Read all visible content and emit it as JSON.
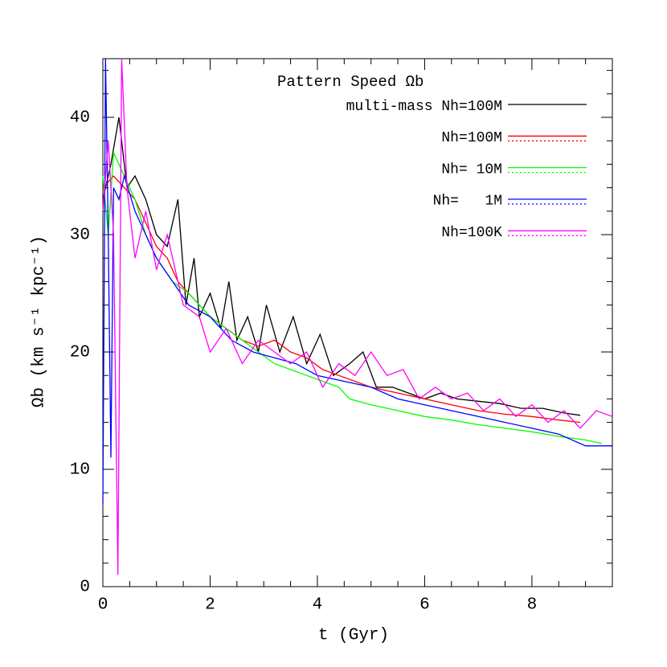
{
  "chart_data": {
    "type": "line",
    "xlabel": "t (Gyr)",
    "ylabel": "Ωb (km s⁻¹ kpc⁻¹)",
    "legend_title": "Pattern Speed Ωb",
    "legend": "upper right",
    "xlim": [
      0,
      9.5
    ],
    "ylim": [
      0,
      45
    ],
    "xticks": [
      0,
      2,
      4,
      6,
      8
    ],
    "yticks": [
      0,
      10,
      20,
      30,
      40
    ],
    "xminorticks": [
      0.5,
      1,
      1.5,
      2.5,
      3,
      3.5,
      4.5,
      5,
      5.5,
      6.5,
      7,
      7.5,
      8.5,
      9
    ],
    "yminorticks": [
      2,
      4,
      6,
      8,
      12,
      14,
      16,
      18,
      22,
      24,
      26,
      28,
      32,
      34,
      36,
      38,
      42,
      44
    ],
    "series": [
      {
        "name": "multi-mass Nh=100M",
        "color": "#000000",
        "paired": false,
        "x": [
          0,
          0.15,
          0.3,
          0.45,
          0.6,
          0.8,
          1.0,
          1.2,
          1.4,
          1.55,
          1.7,
          1.8,
          2.0,
          2.2,
          2.35,
          2.5,
          2.7,
          2.9,
          3.05,
          3.3,
          3.55,
          3.8,
          4.05,
          4.3,
          4.6,
          4.85,
          5.1,
          5.4,
          5.7,
          6.0,
          6.3,
          6.6,
          7.0,
          7.4,
          7.8,
          8.2,
          8.6,
          8.9
        ],
        "values": [
          33,
          36,
          40,
          34,
          35,
          33,
          30,
          29,
          33,
          24,
          28,
          23,
          25,
          22,
          26,
          21,
          23,
          20,
          24,
          20,
          23,
          19,
          21.5,
          18,
          19,
          20,
          17,
          17,
          16.5,
          16,
          16.5,
          16,
          15.8,
          15.6,
          15.2,
          15.2,
          14.8,
          14.6
        ]
      },
      {
        "name": "Nh=100M",
        "color": "#ff0000",
        "paired": true,
        "x": [
          0,
          0.2,
          0.4,
          0.6,
          0.8,
          1.0,
          1.2,
          1.4,
          1.6,
          1.8,
          2.0,
          2.3,
          2.6,
          2.9,
          3.2,
          3.5,
          3.8,
          4.1,
          4.4,
          4.7,
          5.0,
          5.5,
          6.0,
          6.5,
          7.0,
          7.5,
          8.0,
          8.5,
          8.9
        ],
        "values": [
          34,
          35,
          34,
          33,
          31,
          29,
          28,
          26,
          25,
          24,
          23,
          22,
          21,
          20.5,
          21,
          20,
          19.5,
          18.5,
          18,
          17.5,
          17,
          16.5,
          16,
          15.5,
          15,
          14.7,
          14.5,
          14.2,
          14
        ]
      },
      {
        "name": "Nh= 10M",
        "color": "#00ff00",
        "paired": true,
        "x": [
          0,
          0.1,
          0.2,
          0.4,
          0.6,
          0.8,
          1.0,
          1.3,
          1.6,
          2.0,
          2.3,
          2.6,
          2.9,
          3.2,
          3.5,
          3.8,
          4.1,
          4.4,
          4.6,
          5.0,
          5.5,
          6.0,
          6.5,
          7.0,
          7.5,
          8.0,
          8.5,
          9.0,
          9.3
        ],
        "values": [
          35,
          30,
          37,
          35,
          33,
          30,
          28,
          26,
          25,
          23,
          22,
          21,
          20,
          19,
          18.5,
          18,
          17.5,
          17,
          16,
          15.5,
          15,
          14.5,
          14.2,
          13.8,
          13.5,
          13.2,
          12.8,
          12.5,
          12.2
        ]
      },
      {
        "name": "Nh=   1M",
        "color": "#0000ff",
        "paired": true,
        "x": [
          0,
          0.05,
          0.1,
          0.15,
          0.2,
          0.3,
          0.4,
          0.6,
          0.8,
          1.0,
          1.3,
          1.6,
          2.0,
          2.4,
          2.8,
          3.2,
          3.6,
          4.0,
          4.5,
          5.0,
          5.5,
          6.0,
          6.5,
          7.0,
          7.5,
          8.0,
          8.5,
          9.0,
          9.5
        ],
        "values": [
          7,
          45,
          30,
          11,
          34,
          33,
          35,
          32,
          30,
          28,
          26,
          24,
          23,
          21,
          20,
          19.5,
          19,
          18,
          17.5,
          17,
          16,
          15.5,
          15,
          14.5,
          14,
          13.5,
          13,
          12,
          12
        ]
      },
      {
        "name": "Nh=100K",
        "color": "#ff00ff",
        "paired": true,
        "x": [
          0,
          0.1,
          0.2,
          0.28,
          0.35,
          0.45,
          0.6,
          0.8,
          1.0,
          1.2,
          1.5,
          1.8,
          2.0,
          2.3,
          2.6,
          2.9,
          3.2,
          3.5,
          3.8,
          4.1,
          4.4,
          4.7,
          5.0,
          5.3,
          5.6,
          5.9,
          6.2,
          6.5,
          6.8,
          7.1,
          7.4,
          7.7,
          8.0,
          8.3,
          8.6,
          8.9,
          9.2,
          9.5
        ],
        "values": [
          32,
          38,
          30,
          1,
          45,
          34,
          28,
          32,
          27,
          30,
          24,
          23,
          20,
          22,
          19,
          21,
          20,
          19,
          20,
          17,
          19,
          18,
          20,
          18,
          18.5,
          16,
          17,
          16,
          16.5,
          15,
          16,
          14.5,
          15.5,
          14,
          15,
          13.5,
          15,
          14.5
        ]
      }
    ]
  }
}
